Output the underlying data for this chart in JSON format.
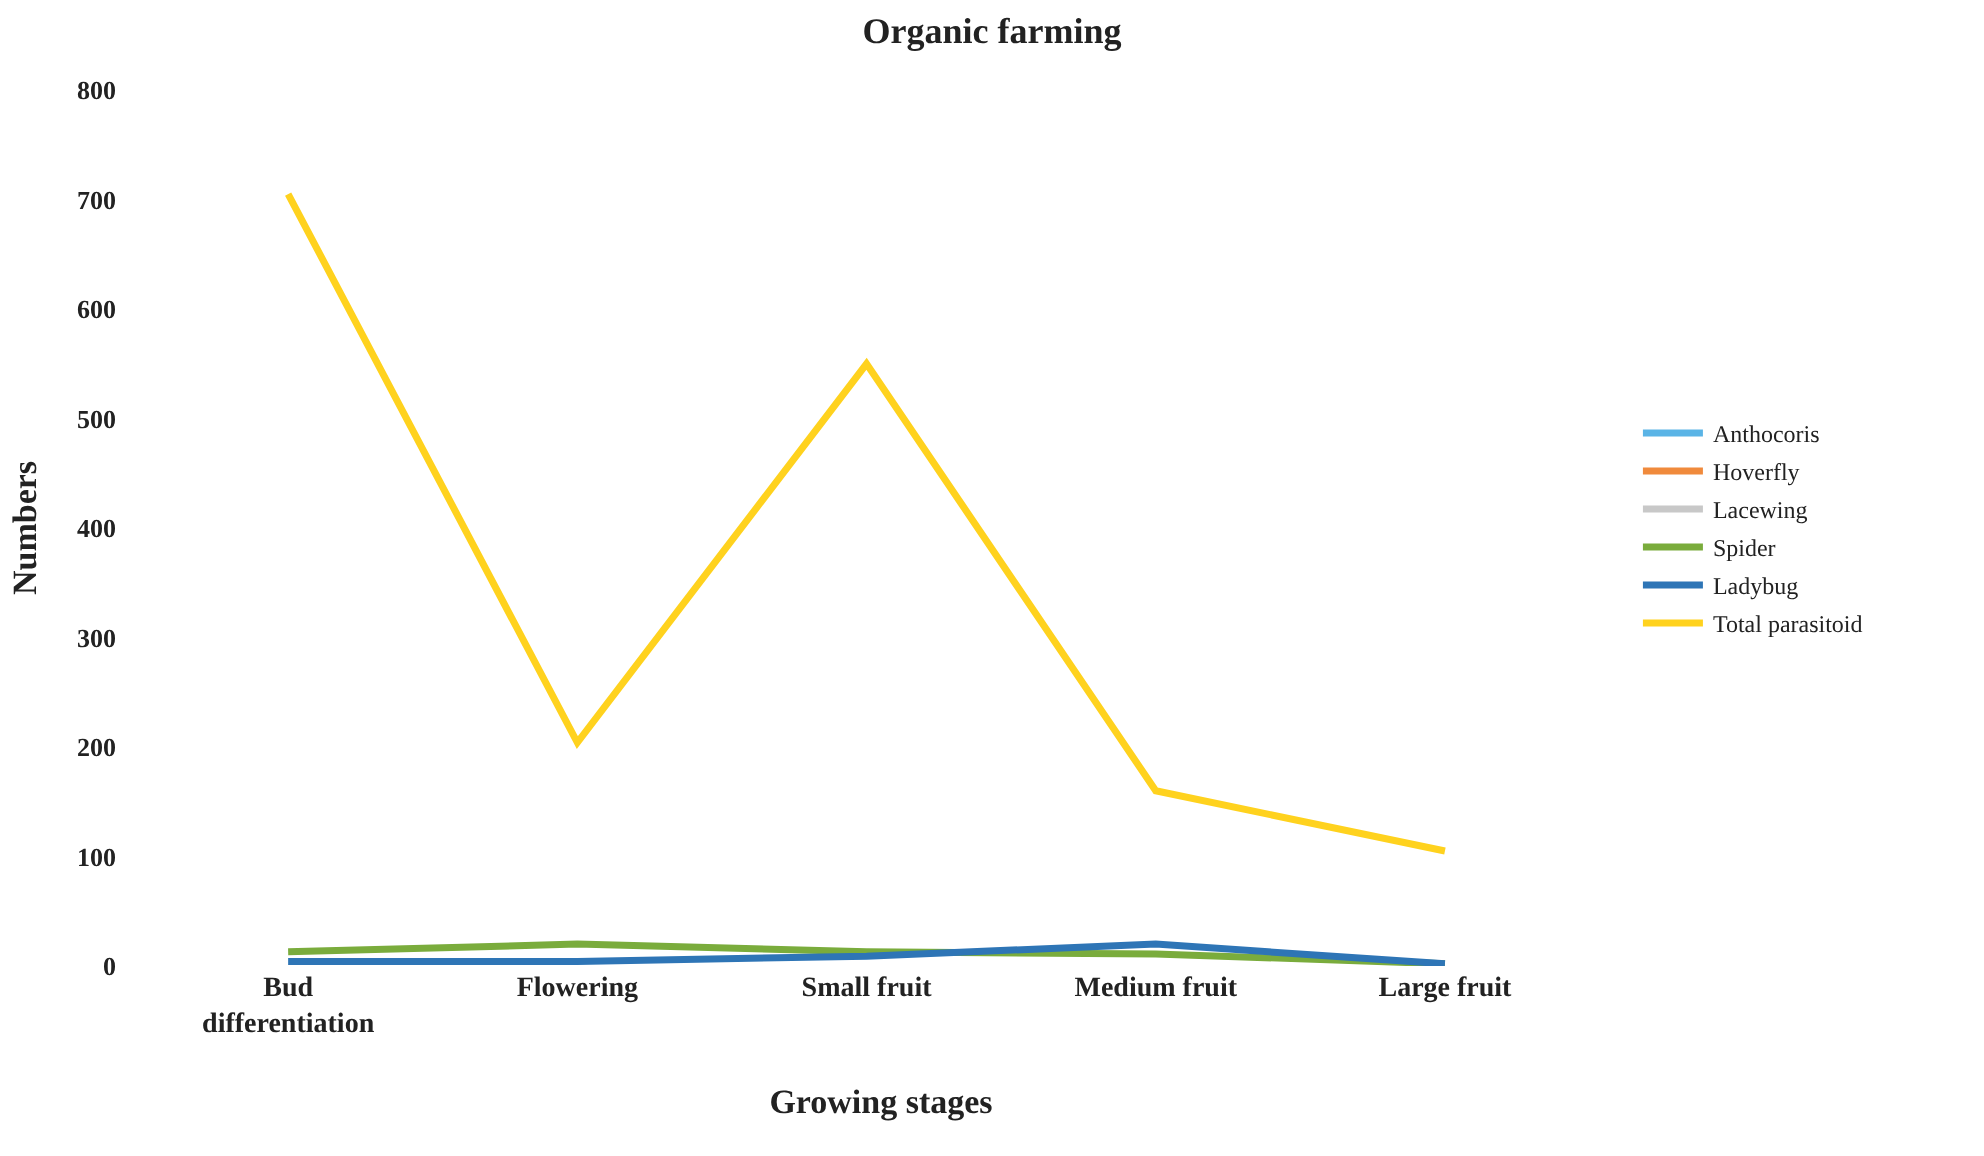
{
  "chart_data": {
    "type": "line",
    "title": "Organic farming",
    "xlabel": "Growing stages",
    "ylabel": "Numbers",
    "categories": [
      "Bud differentiation",
      "Flowering",
      "Small fruit",
      "Medium fruit",
      "Large fruit"
    ],
    "series": [
      {
        "name": "Anthocoris",
        "color": "#5ab4e6",
        "values": [
          null,
          null,
          null,
          null,
          null
        ]
      },
      {
        "name": "Hoverfly",
        "color": "#f08a3c",
        "values": [
          null,
          null,
          null,
          null,
          null
        ]
      },
      {
        "name": "Lacewing",
        "color": "#c8c8c8",
        "values": [
          null,
          null,
          null,
          null,
          null
        ]
      },
      {
        "name": "Spider",
        "color": "#7aac3c",
        "values": [
          13,
          20,
          13,
          11,
          2
        ]
      },
      {
        "name": "Ladybug",
        "color": "#2e75b6",
        "values": [
          4,
          4,
          9,
          20,
          2
        ]
      },
      {
        "name": "Total parasitoid",
        "color": "#ffd21e",
        "values": [
          705,
          204,
          550,
          160,
          105
        ]
      }
    ],
    "ylim": [
      0,
      800
    ],
    "yticks": [
      0,
      100,
      200,
      300,
      400,
      500,
      600,
      700,
      800
    ],
    "legend": "right",
    "marker": "none",
    "line_style": "solid"
  }
}
